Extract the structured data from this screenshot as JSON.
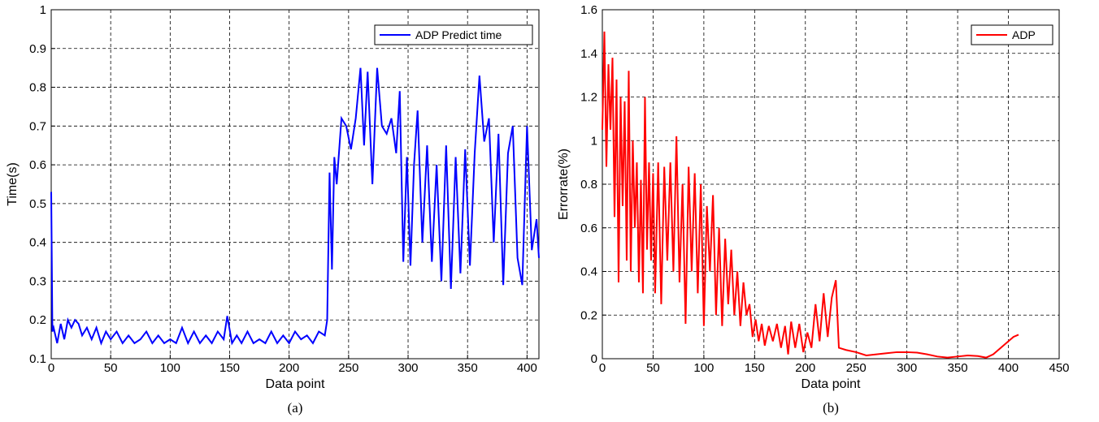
{
  "chart_data": [
    {
      "type": "line",
      "xlabel": "Data point",
      "ylabel": "Time(s)",
      "caption": "(a)",
      "xlim": [
        0,
        410
      ],
      "xticks": [
        0,
        50,
        100,
        150,
        200,
        250,
        300,
        350,
        400
      ],
      "ylim": [
        0.1,
        1
      ],
      "yticks": [
        0.1,
        0.2,
        0.3,
        0.4,
        0.5,
        0.6,
        0.7,
        0.8,
        0.9,
        1
      ],
      "grid": true,
      "legend": "upper right",
      "x": [
        0,
        1,
        2,
        5,
        8,
        11,
        14,
        17,
        20,
        23,
        26,
        30,
        34,
        38,
        42,
        46,
        50,
        55,
        60,
        65,
        70,
        75,
        80,
        85,
        90,
        95,
        100,
        105,
        110,
        115,
        120,
        125,
        130,
        135,
        140,
        145,
        148,
        152,
        156,
        160,
        165,
        170,
        175,
        180,
        185,
        190,
        195,
        200,
        205,
        210,
        215,
        220,
        225,
        230,
        232,
        234,
        236,
        238,
        240,
        244,
        248,
        252,
        256,
        260,
        263,
        266,
        270,
        274,
        278,
        282,
        286,
        290,
        293,
        296,
        299,
        302,
        305,
        308,
        312,
        316,
        320,
        324,
        328,
        332,
        336,
        340,
        344,
        348,
        352,
        356,
        360,
        364,
        368,
        372,
        376,
        380,
        384,
        388,
        392,
        396,
        400,
        404,
        408,
        410
      ],
      "series": [
        {
          "name": "ADP Predict time",
          "color": "#0000ff",
          "values": [
            0.53,
            0.17,
            0.18,
            0.14,
            0.19,
            0.15,
            0.2,
            0.18,
            0.2,
            0.19,
            0.16,
            0.18,
            0.15,
            0.18,
            0.14,
            0.17,
            0.15,
            0.17,
            0.14,
            0.16,
            0.14,
            0.15,
            0.17,
            0.14,
            0.16,
            0.14,
            0.15,
            0.14,
            0.18,
            0.14,
            0.17,
            0.14,
            0.16,
            0.14,
            0.17,
            0.15,
            0.21,
            0.14,
            0.16,
            0.14,
            0.17,
            0.14,
            0.15,
            0.14,
            0.17,
            0.14,
            0.16,
            0.14,
            0.17,
            0.15,
            0.16,
            0.14,
            0.17,
            0.16,
            0.2,
            0.58,
            0.33,
            0.62,
            0.55,
            0.72,
            0.7,
            0.64,
            0.72,
            0.85,
            0.65,
            0.84,
            0.55,
            0.85,
            0.7,
            0.68,
            0.72,
            0.63,
            0.79,
            0.35,
            0.62,
            0.34,
            0.6,
            0.74,
            0.4,
            0.65,
            0.35,
            0.6,
            0.3,
            0.65,
            0.28,
            0.62,
            0.32,
            0.64,
            0.34,
            0.63,
            0.83,
            0.66,
            0.72,
            0.4,
            0.68,
            0.29,
            0.63,
            0.7,
            0.36,
            0.29,
            0.7,
            0.38,
            0.46,
            0.36
          ]
        }
      ]
    },
    {
      "type": "line",
      "xlabel": "Data point",
      "ylabel": "Errorrate(%)",
      "caption": "(b)",
      "xlim": [
        0,
        450
      ],
      "xticks": [
        0,
        50,
        100,
        150,
        200,
        250,
        300,
        350,
        400,
        450
      ],
      "ylim": [
        0,
        1.6
      ],
      "yticks": [
        0,
        0.2,
        0.4,
        0.6,
        0.8,
        1,
        1.2,
        1.4,
        1.6
      ],
      "grid": true,
      "legend": "upper right",
      "x": [
        0,
        2,
        4,
        6,
        8,
        10,
        12,
        14,
        16,
        18,
        20,
        22,
        24,
        26,
        28,
        30,
        32,
        34,
        36,
        38,
        40,
        42,
        44,
        46,
        48,
        50,
        52,
        55,
        58,
        61,
        64,
        67,
        70,
        73,
        76,
        79,
        82,
        85,
        88,
        91,
        94,
        97,
        100,
        103,
        106,
        109,
        112,
        115,
        118,
        121,
        124,
        127,
        130,
        133,
        136,
        139,
        142,
        145,
        148,
        151,
        154,
        157,
        160,
        164,
        168,
        172,
        176,
        180,
        183,
        186,
        190,
        194,
        198,
        202,
        206,
        210,
        214,
        218,
        222,
        226,
        230,
        233,
        240,
        250,
        260,
        270,
        280,
        290,
        300,
        310,
        320,
        330,
        340,
        350,
        360,
        370,
        378,
        385,
        395,
        405,
        410
      ],
      "series": [
        {
          "name": "ADP",
          "color": "#ff0000",
          "values": [
            1.05,
            1.5,
            0.88,
            1.35,
            1.05,
            1.38,
            0.65,
            1.28,
            0.35,
            1.2,
            0.7,
            1.18,
            0.45,
            1.32,
            0.4,
            1.0,
            0.6,
            0.9,
            0.35,
            0.82,
            0.3,
            1.2,
            0.5,
            0.9,
            0.45,
            0.85,
            0.3,
            0.9,
            0.25,
            0.88,
            0.45,
            0.9,
            0.4,
            1.02,
            0.35,
            0.8,
            0.16,
            0.88,
            0.4,
            0.85,
            0.3,
            0.8,
            0.15,
            0.7,
            0.4,
            0.75,
            0.2,
            0.6,
            0.15,
            0.55,
            0.25,
            0.5,
            0.2,
            0.4,
            0.15,
            0.35,
            0.2,
            0.25,
            0.1,
            0.18,
            0.08,
            0.16,
            0.06,
            0.15,
            0.08,
            0.16,
            0.05,
            0.15,
            0.02,
            0.17,
            0.05,
            0.16,
            0.03,
            0.12,
            0.05,
            0.25,
            0.08,
            0.3,
            0.1,
            0.28,
            0.36,
            0.05,
            0.04,
            0.03,
            0.015,
            0.02,
            0.025,
            0.03,
            0.03,
            0.028,
            0.02,
            0.01,
            0.005,
            0.01,
            0.015,
            0.012,
            0.005,
            0.02,
            0.06,
            0.1,
            0.11
          ]
        }
      ]
    }
  ]
}
